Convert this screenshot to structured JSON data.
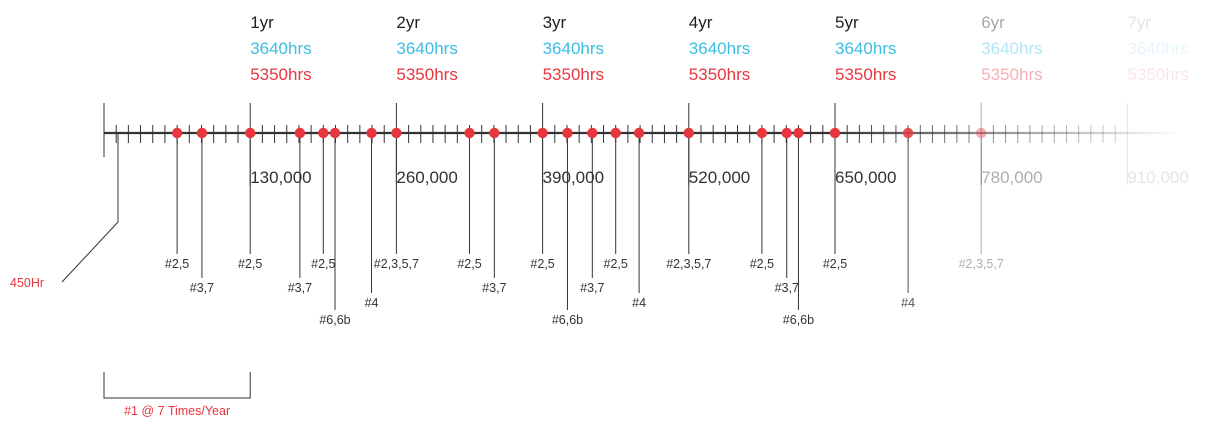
{
  "colors": {
    "axis": "#333333",
    "red": "#e8363f",
    "blue": "#3dbde3",
    "text": "#222222"
  },
  "years": [
    {
      "label": "1yr",
      "hrs_a": "3640hrs",
      "hrs_b": "5350hrs",
      "miles": "130,000",
      "opacity": 1
    },
    {
      "label": "2yr",
      "hrs_a": "3640hrs",
      "hrs_b": "5350hrs",
      "miles": "260,000",
      "opacity": 1
    },
    {
      "label": "3yr",
      "hrs_a": "3640hrs",
      "hrs_b": "5350hrs",
      "miles": "390,000",
      "opacity": 1
    },
    {
      "label": "4yr",
      "hrs_a": "3640hrs",
      "hrs_b": "5350hrs",
      "miles": "520,000",
      "opacity": 1
    },
    {
      "label": "5yr",
      "hrs_a": "3640hrs",
      "hrs_b": "5350hrs",
      "miles": "650,000",
      "opacity": 1
    },
    {
      "label": "6yr",
      "hrs_a": "3640hrs",
      "hrs_b": "5350hrs",
      "miles": "780,000",
      "opacity": 0.4
    },
    {
      "label": "7yr",
      "hrs_a": "3640hrs",
      "hrs_b": "5350hrs",
      "miles": "910,000",
      "opacity": 0.12
    }
  ],
  "start_label": "450Hr",
  "bracket_label": "#1 @ 7 Times/Year",
  "service_points": [
    {
      "pos": 0.5,
      "label": "#2,5",
      "level": 1,
      "opacity": 1
    },
    {
      "pos": 0.67,
      "label": "#3,7",
      "level": 2,
      "opacity": 1
    },
    {
      "pos": 1.0,
      "label": "#2,5",
      "level": 1,
      "opacity": 1
    },
    {
      "pos": 1.34,
      "label": "#3,7",
      "level": 2,
      "opacity": 1
    },
    {
      "pos": 1.5,
      "label": "#2,5",
      "level": 1,
      "opacity": 1
    },
    {
      "pos": 1.58,
      "label": "#6,6b",
      "level": 4,
      "opacity": 1
    },
    {
      "pos": 1.83,
      "label": "#4",
      "level": 3,
      "opacity": 1
    },
    {
      "pos": 2.0,
      "label": "#2,3,5,7",
      "level": 1,
      "opacity": 1
    },
    {
      "pos": 2.5,
      "label": "#2,5",
      "level": 1,
      "opacity": 1
    },
    {
      "pos": 2.67,
      "label": "#3,7",
      "level": 2,
      "opacity": 1
    },
    {
      "pos": 3.0,
      "label": "#2,5",
      "level": 1,
      "opacity": 1
    },
    {
      "pos": 3.17,
      "label": "#6,6b",
      "level": 4,
      "opacity": 1
    },
    {
      "pos": 3.34,
      "label": "#3,7",
      "level": 2,
      "opacity": 1
    },
    {
      "pos": 3.5,
      "label": "#2,5",
      "level": 1,
      "opacity": 1
    },
    {
      "pos": 3.66,
      "label": "#4",
      "level": 3,
      "opacity": 1
    },
    {
      "pos": 4.0,
      "label": "#2,3,5,7",
      "level": 1,
      "opacity": 1
    },
    {
      "pos": 4.5,
      "label": "#2,5",
      "level": 1,
      "opacity": 1
    },
    {
      "pos": 4.67,
      "label": "#3,7",
      "level": 2,
      "opacity": 1
    },
    {
      "pos": 4.75,
      "label": "#6,6b",
      "level": 4,
      "opacity": 1
    },
    {
      "pos": 5.0,
      "label": "#2,5",
      "level": 1,
      "opacity": 1
    },
    {
      "pos": 5.5,
      "label": "#4",
      "level": 3,
      "opacity": 0.85
    },
    {
      "pos": 6.0,
      "label": "#2,3,5,7",
      "level": 1,
      "opacity": 0.4
    }
  ]
}
